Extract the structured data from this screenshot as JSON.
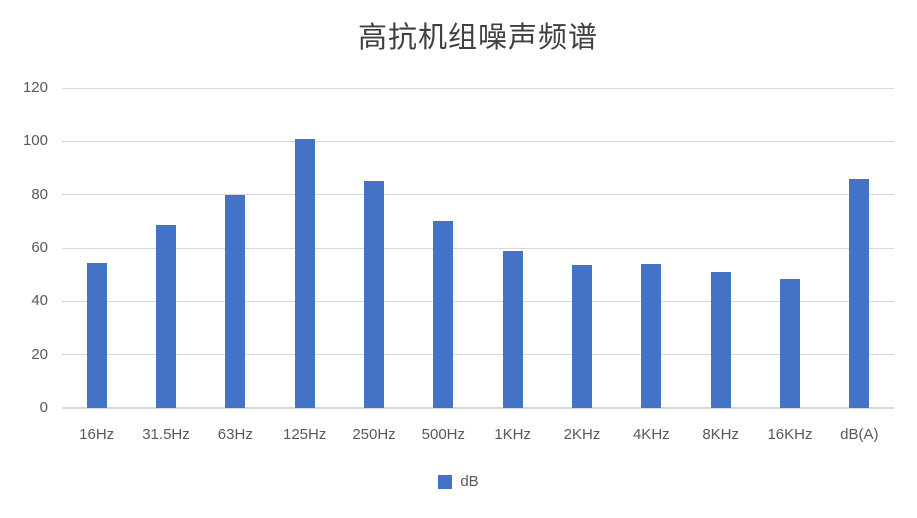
{
  "colors": {
    "bar": "#4472C4",
    "gridline": "#D9D9D9",
    "axis_line": "#D9D9D9",
    "tick_label": "#595959",
    "title_text": "#404040",
    "background": "#FFFFFF"
  },
  "legend": {
    "label": "dB"
  },
  "chart_data": {
    "type": "bar",
    "title": "高抗机组噪声频谱",
    "categories": [
      "16Hz",
      "31.5Hz",
      "63Hz",
      "125Hz",
      "250Hz",
      "500Hz",
      "1KHz",
      "2KHz",
      "4KHz",
      "8KHz",
      "16KHz",
      "dB(A)"
    ],
    "series": [
      {
        "name": "dB",
        "values": [
          54.5,
          68.5,
          80,
          101,
          85,
          70,
          59,
          53.5,
          54,
          51,
          48.5,
          86
        ]
      }
    ],
    "xlabel": "",
    "ylabel": "",
    "ylim": [
      0,
      120
    ],
    "yticks": [
      0,
      20,
      40,
      60,
      80,
      100,
      120
    ],
    "grid": true,
    "legend_position": "bottom"
  }
}
